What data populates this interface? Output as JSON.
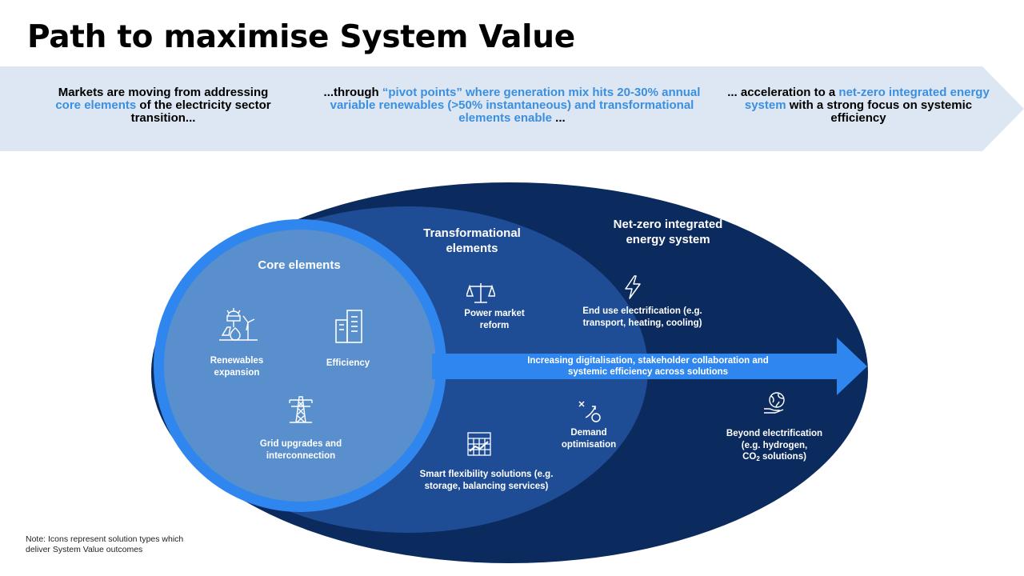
{
  "title": "Path to maximise System Value",
  "banner": {
    "stage1": {
      "pre": "Markets are moving from addressing ",
      "highlight": "core elements",
      "post": " of the electricity sector transition..."
    },
    "stage2": {
      "pre": "...through ",
      "highlight": "“pivot points” where generation mix hits 20-30% annual variable renewables (>50% instantaneous) and transformational elements enable",
      "post": " ..."
    },
    "stage3": {
      "pre": "... acceleration to a ",
      "highlight": "net-zero integrated energy system",
      "post": " with a strong focus on systemic efficiency"
    }
  },
  "diagram": {
    "core": {
      "heading": "Core elements",
      "items": {
        "renewables": "Renewables expansion",
        "efficiency": "Efficiency",
        "grid": "Grid upgrades and interconnection"
      }
    },
    "transformational": {
      "heading": "Transformational elements",
      "items": {
        "power_market": "Power market reform",
        "demand": "Demand optimisation",
        "flexibility": "Smart flexibility solutions (e.g. storage, balancing services)"
      }
    },
    "netzero": {
      "heading": "Net-zero integrated energy system",
      "items": {
        "electrification": "End use electrification (e.g. transport, heating, cooling)",
        "beyond": {
          "line1": "Beyond electrification",
          "line2": "(e.g. hydrogen,",
          "co2_pre": "CO",
          "co2_sub": "2",
          "co2_post": " solutions)"
        }
      }
    },
    "arrow_text": "Increasing digitalisation, stakeholder collaboration and systemic efficiency across solutions"
  },
  "note": "Note: Icons represent solution types which deliver System Value outcomes",
  "colors": {
    "banner": "#dce7f3",
    "outer": "#0b2a5e",
    "middle": "#1f4d95",
    "inner": "#5a8fcd",
    "ring": "#2f86ee",
    "arrow": "#2f86ee",
    "highlight": "#3c8fde"
  },
  "icons": [
    "solar-wind-icon",
    "building-icon",
    "pylon-icon",
    "scales-icon",
    "chart-icon",
    "strategy-icon",
    "lightning-icon",
    "globe-hand-icon"
  ]
}
